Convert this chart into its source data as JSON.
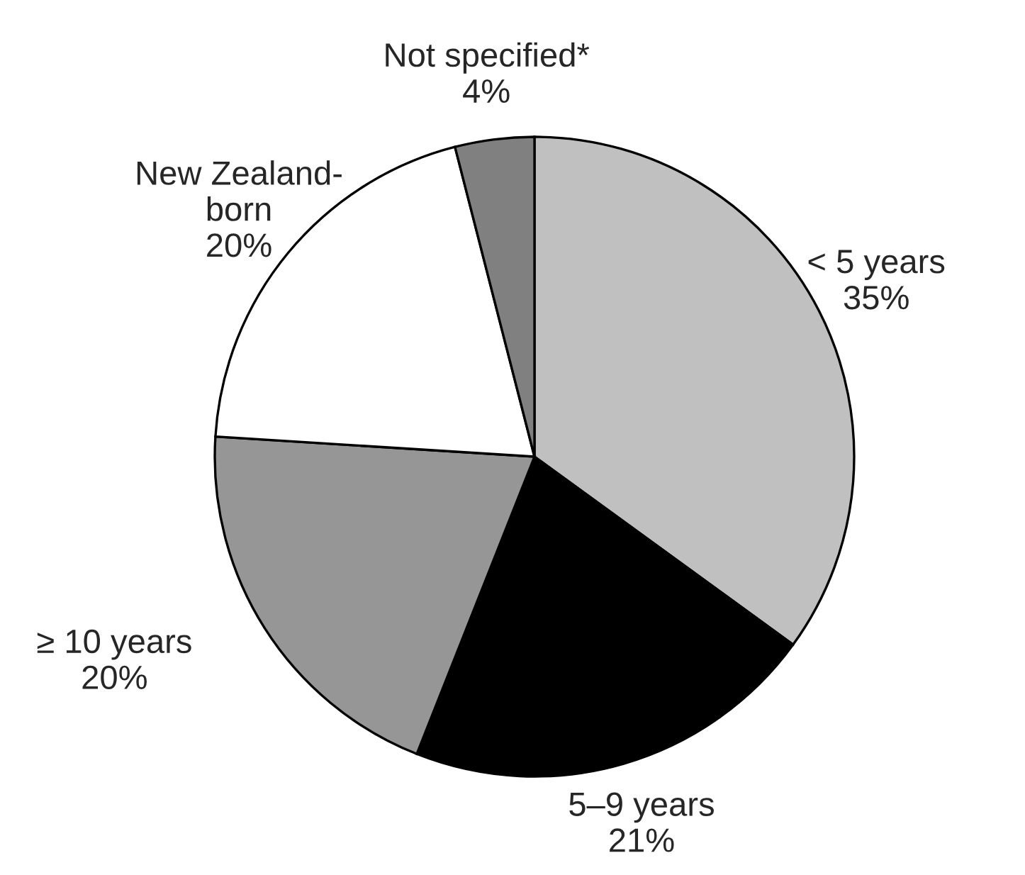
{
  "chart_data": {
    "type": "pie",
    "categories": [
      "< 5 years",
      "5–9 years",
      "≥ 10 years",
      "New Zealand-\nborn",
      "Not specified*"
    ],
    "values": [
      35,
      21,
      20,
      20,
      4
    ],
    "colors": [
      "#c0c0c0",
      "#000000",
      "#969696",
      "#ffffff",
      "#808080"
    ],
    "value_labels": [
      "35%",
      "21%",
      "20%",
      "20%",
      "4%"
    ]
  }
}
